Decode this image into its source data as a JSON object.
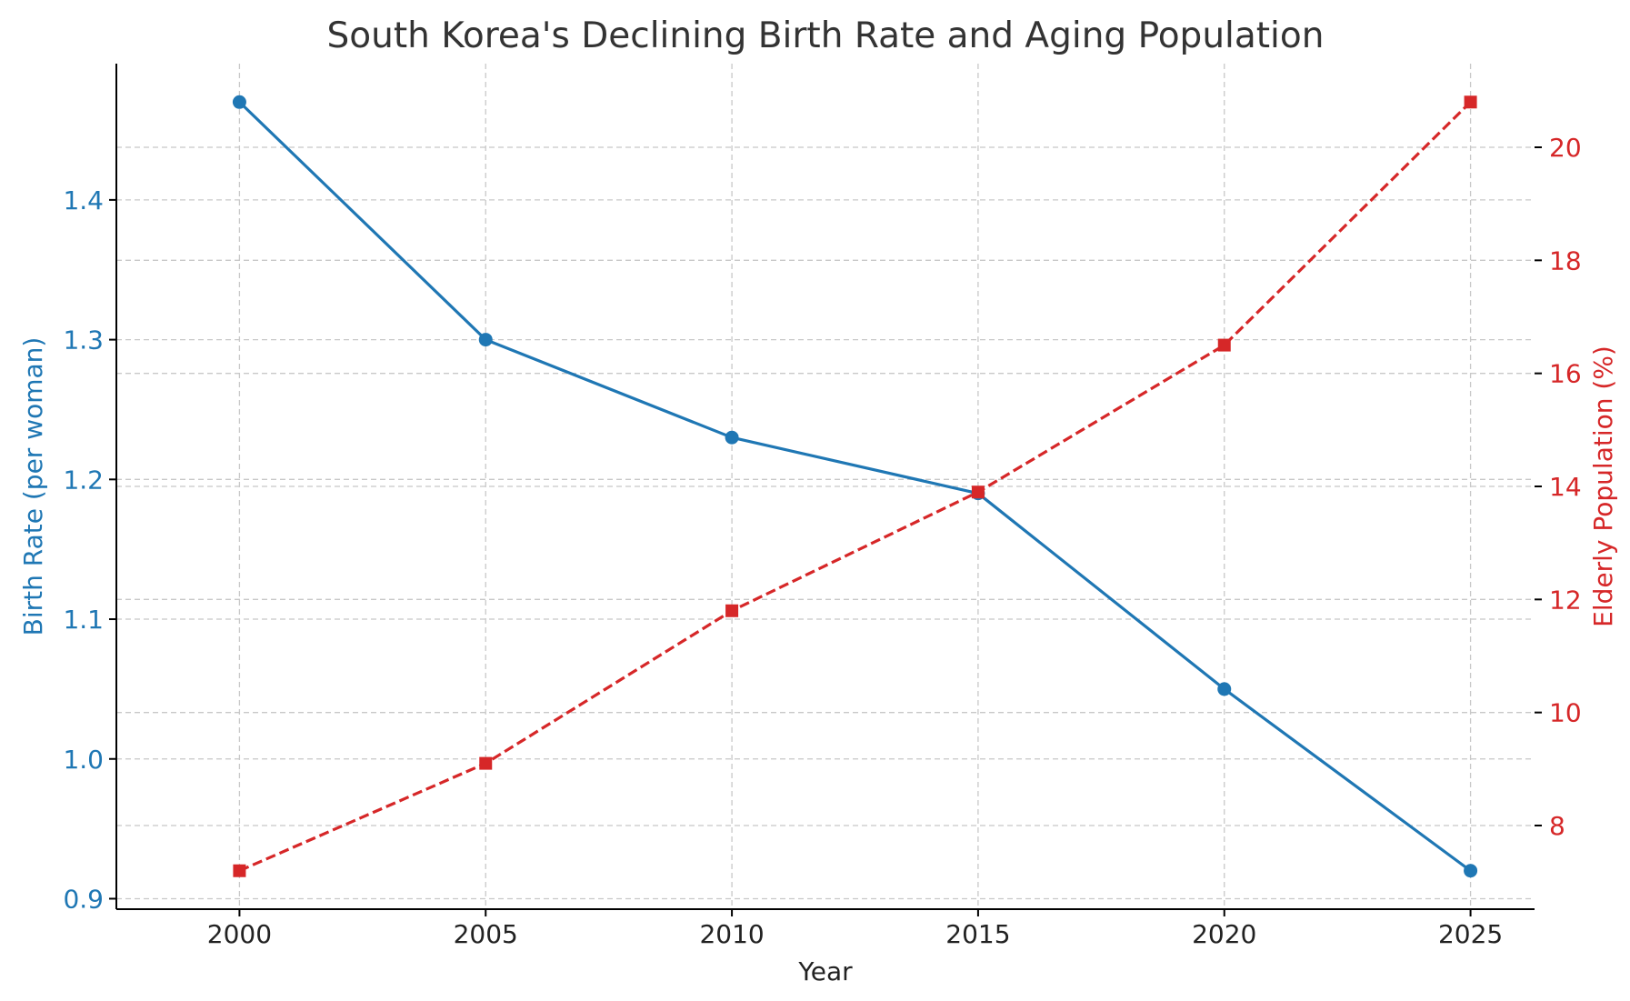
{
  "chart_data": {
    "type": "line",
    "title": "South Korea's Declining Birth Rate and Aging Population",
    "xlabel": "Year",
    "x": [
      2000,
      2005,
      2010,
      2015,
      2020,
      2025
    ],
    "xlim": [
      1997.5,
      2026.3
    ],
    "xticks": [
      2000,
      2005,
      2010,
      2015,
      2020,
      2025
    ],
    "grid": true,
    "series": [
      {
        "name": "Birth Rate (per woman)",
        "axis": "left",
        "ylabel": "Birth Rate (per woman)",
        "values": [
          1.47,
          1.3,
          1.23,
          1.19,
          1.05,
          0.92
        ],
        "ylim": [
          0.8925,
          1.4975
        ],
        "yticks": [
          0.9,
          1.0,
          1.1,
          1.2,
          1.3,
          1.4
        ],
        "color": "#1f77b4",
        "linestyle": "solid",
        "marker": "circle"
      },
      {
        "name": "Elderly Population (%)",
        "axis": "right",
        "ylabel": "Elderly Population (%)",
        "values": [
          7.2,
          9.1,
          11.8,
          13.9,
          16.5,
          20.8
        ],
        "ylim": [
          6.52,
          21.48
        ],
        "yticks": [
          8,
          10,
          12,
          14,
          16,
          18,
          20
        ],
        "color": "#d62728",
        "linestyle": "dashed",
        "marker": "square"
      }
    ]
  }
}
